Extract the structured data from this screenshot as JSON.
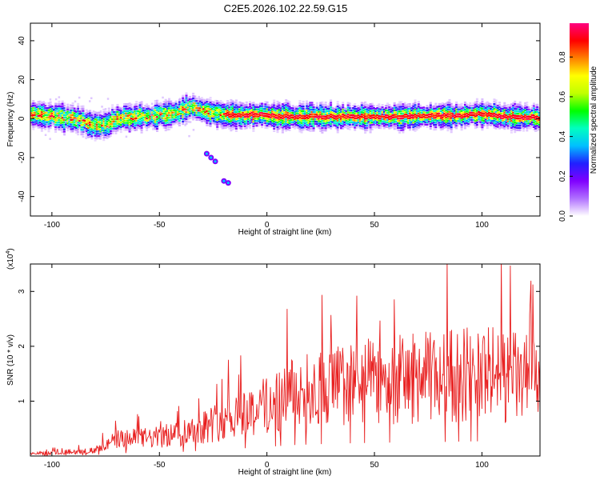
{
  "title": "C2E5.2026.102.22.59.G15",
  "chart_data": [
    {
      "type": "heatmap",
      "name": "spectrogram",
      "xlabel": "Height of straight line (km)",
      "ylabel": "Frequency (Hz)",
      "xlim": [
        -110,
        127
      ],
      "ylim": [
        -50,
        49
      ],
      "xticks": [
        -100,
        -50,
        0,
        50,
        100
      ],
      "yticks": [
        40,
        20,
        0,
        -20,
        -40
      ],
      "colorbar": {
        "label": "Normalized spectral amplitude",
        "range": [
          0,
          0.97
        ],
        "ticks": [
          0.0,
          0.2,
          0.4,
          0.6,
          0.8
        ],
        "tick_labels": [
          "0.0",
          "0.2",
          "0.4",
          "0.6",
          "0.8"
        ],
        "colormap": [
          "#ffffff",
          "#b070ff",
          "#8000ff",
          "#2020ff",
          "#00c0ff",
          "#00ffc0",
          "#00ff00",
          "#c0ff00",
          "#ffff00",
          "#ff8000",
          "#ff0000",
          "#ff0080"
        ]
      },
      "ridge_center_hz": [
        [
          -110,
          2
        ],
        [
          -100,
          1.5
        ],
        [
          -95,
          0.5
        ],
        [
          -90,
          0
        ],
        [
          -85,
          -2
        ],
        [
          -80,
          -4
        ],
        [
          -75,
          -3
        ],
        [
          -70,
          0
        ],
        [
          -65,
          0.5
        ],
        [
          -60,
          1
        ],
        [
          -55,
          1
        ],
        [
          -50,
          2
        ],
        [
          -45,
          2
        ],
        [
          -40,
          4
        ],
        [
          -35,
          6
        ],
        [
          -30,
          4
        ],
        [
          -25,
          3
        ],
        [
          -20,
          2
        ],
        [
          -10,
          2
        ],
        [
          0,
          1.5
        ],
        [
          10,
          1
        ],
        [
          20,
          1
        ],
        [
          30,
          1
        ],
        [
          40,
          1
        ],
        [
          50,
          1
        ],
        [
          60,
          1
        ],
        [
          70,
          1.5
        ],
        [
          80,
          1.5
        ],
        [
          90,
          1.5
        ],
        [
          100,
          2.5
        ],
        [
          110,
          1
        ],
        [
          120,
          1
        ],
        [
          127,
          0
        ]
      ],
      "secondary_tracks_hz": [
        [
          -28,
          -18
        ],
        [
          -26,
          -20
        ],
        [
          -24,
          -22
        ],
        [
          -20,
          -32
        ],
        [
          -18,
          -33
        ]
      ]
    },
    {
      "type": "line",
      "name": "snr",
      "xlabel": "Height of straight line (km)",
      "ylabel": "SNR (10 * v/v)",
      "scale_label": "(x10",
      "scale_exp": "4",
      "scale_close": ")",
      "xlim": [
        -110,
        127
      ],
      "ylim": [
        0,
        3.5
      ],
      "xticks": [
        -100,
        -50,
        0,
        50,
        100
      ],
      "yticks": [
        1,
        2,
        3
      ],
      "color": "#e81e1e",
      "envelope": [
        [
          -110,
          0.05
        ],
        [
          -80,
          0.12
        ],
        [
          -70,
          0.35
        ],
        [
          -50,
          0.4
        ],
        [
          -40,
          0.5
        ],
        [
          -25,
          0.7
        ],
        [
          -15,
          0.9
        ],
        [
          -5,
          1.0
        ],
        [
          10,
          1.3
        ],
        [
          30,
          1.5
        ],
        [
          60,
          1.65
        ],
        [
          80,
          1.7
        ],
        [
          100,
          1.8
        ],
        [
          127,
          1.6
        ]
      ]
    }
  ]
}
